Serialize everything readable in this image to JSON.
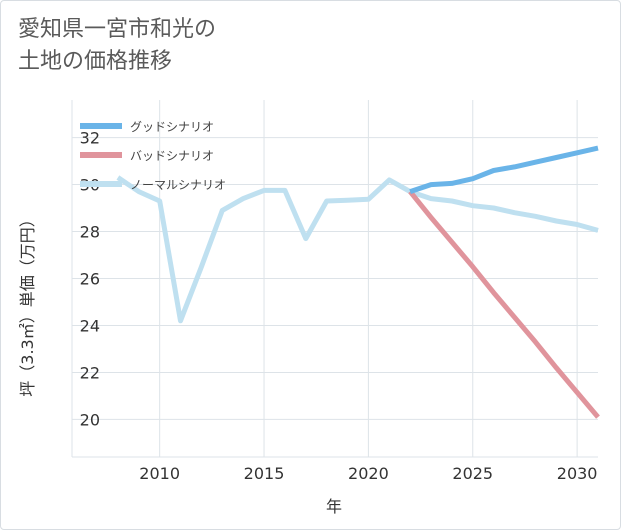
{
  "title": {
    "line1": "愛知県一宮市和光の",
    "line2": "土地の価格推移"
  },
  "chart_data": {
    "type": "line",
    "xlabel": "年",
    "ylabel": "坪（3.3㎡）単価（万円）",
    "xlim": [
      2005.8,
      2031
    ],
    "ylim": [
      18.4,
      33.6
    ],
    "xticks": [
      2010,
      2015,
      2020,
      2025,
      2030
    ],
    "yticks": [
      20,
      22,
      24,
      26,
      28,
      30,
      32
    ],
    "grid": true,
    "legend_position": "top-left",
    "series": [
      {
        "name": "グッドシナリオ",
        "color": "#6ab4e8",
        "x": [
          2022,
          2023,
          2024,
          2025,
          2026,
          2027,
          2028,
          2029,
          2030,
          2031
        ],
        "y": [
          29.7,
          30.0,
          30.05,
          30.25,
          30.6,
          30.75,
          30.95,
          31.15,
          31.35,
          31.55
        ]
      },
      {
        "name": "バッドシナリオ",
        "color": "#e0949c",
        "x": [
          2022,
          2023,
          2024,
          2025,
          2026,
          2027,
          2028,
          2029,
          2030,
          2031
        ],
        "y": [
          29.7,
          28.6,
          27.55,
          26.5,
          25.4,
          24.35,
          23.3,
          22.2,
          21.15,
          20.1
        ]
      },
      {
        "name": "ノーマルシナリオ",
        "color": "#bfe0f0",
        "x": [
          2008,
          2009,
          2010,
          2011,
          2012,
          2013,
          2014,
          2015,
          2016,
          2017,
          2018,
          2019,
          2020,
          2021,
          2022,
          2023,
          2024,
          2025,
          2026,
          2027,
          2028,
          2029,
          2030,
          2031
        ],
        "y": [
          30.3,
          29.7,
          29.3,
          24.2,
          26.5,
          28.9,
          29.4,
          29.75,
          29.75,
          27.7,
          29.3,
          29.33,
          29.37,
          30.2,
          29.7,
          29.4,
          29.3,
          29.1,
          29.0,
          28.8,
          28.65,
          28.45,
          28.3,
          28.05
        ]
      }
    ]
  }
}
